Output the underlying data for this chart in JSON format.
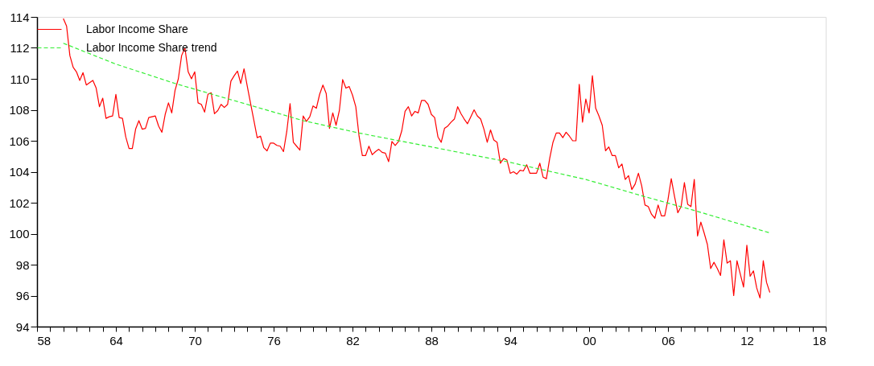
{
  "chart_data": {
    "type": "line",
    "legend": "top left",
    "grid": false,
    "xlim": [
      1958,
      2018
    ],
    "ylim": [
      94,
      114
    ],
    "yticks": [
      94,
      96,
      98,
      100,
      102,
      104,
      106,
      108,
      110,
      112,
      114
    ],
    "xticks": [
      {
        "value": 1958,
        "label": "58"
      },
      {
        "value": 1959,
        "label": null
      },
      {
        "value": 1960,
        "label": null
      },
      {
        "value": 1961,
        "label": null
      },
      {
        "value": 1962,
        "label": null
      },
      {
        "value": 1963,
        "label": null
      },
      {
        "value": 1964,
        "label": "64"
      },
      {
        "value": 1965,
        "label": null
      },
      {
        "value": 1966,
        "label": null
      },
      {
        "value": 1967,
        "label": null
      },
      {
        "value": 1968,
        "label": null
      },
      {
        "value": 1969,
        "label": null
      },
      {
        "value": 1970,
        "label": "70"
      },
      {
        "value": 1971,
        "label": null
      },
      {
        "value": 1972,
        "label": null
      },
      {
        "value": 1973,
        "label": null
      },
      {
        "value": 1974,
        "label": null
      },
      {
        "value": 1975,
        "label": null
      },
      {
        "value": 1976,
        "label": "76"
      },
      {
        "value": 1977,
        "label": null
      },
      {
        "value": 1978,
        "label": null
      },
      {
        "value": 1979,
        "label": null
      },
      {
        "value": 1980,
        "label": null
      },
      {
        "value": 1981,
        "label": null
      },
      {
        "value": 1982,
        "label": "82"
      },
      {
        "value": 1983,
        "label": null
      },
      {
        "value": 1984,
        "label": null
      },
      {
        "value": 1985,
        "label": null
      },
      {
        "value": 1986,
        "label": null
      },
      {
        "value": 1987,
        "label": null
      },
      {
        "value": 1988,
        "label": "88"
      },
      {
        "value": 1989,
        "label": null
      },
      {
        "value": 1990,
        "label": null
      },
      {
        "value": 1991,
        "label": null
      },
      {
        "value": 1992,
        "label": null
      },
      {
        "value": 1993,
        "label": null
      },
      {
        "value": 1994,
        "label": "94"
      },
      {
        "value": 1995,
        "label": null
      },
      {
        "value": 1996,
        "label": null
      },
      {
        "value": 1997,
        "label": null
      },
      {
        "value": 1998,
        "label": null
      },
      {
        "value": 1999,
        "label": null
      },
      {
        "value": 2000,
        "label": "00"
      },
      {
        "value": 2001,
        "label": null
      },
      {
        "value": 2002,
        "label": null
      },
      {
        "value": 2003,
        "label": null
      },
      {
        "value": 2004,
        "label": null
      },
      {
        "value": 2005,
        "label": null
      },
      {
        "value": 2006,
        "label": "06"
      },
      {
        "value": 2007,
        "label": null
      },
      {
        "value": 2008,
        "label": null
      },
      {
        "value": 2009,
        "label": null
      },
      {
        "value": 2010,
        "label": null
      },
      {
        "value": 2011,
        "label": null
      },
      {
        "value": 2012,
        "label": "12"
      },
      {
        "value": 2013,
        "label": null
      },
      {
        "value": 2014,
        "label": null
      },
      {
        "value": 2015,
        "label": null
      },
      {
        "value": 2016,
        "label": null
      },
      {
        "value": 2017,
        "label": null
      },
      {
        "value": 2018,
        "label": "18"
      }
    ],
    "series": [
      {
        "name": "Labor Income Share",
        "color": "#ff0000",
        "line_style": "solid",
        "x": [
          1960.0,
          1960.25,
          1960.5,
          1960.75,
          1961.0,
          1961.25,
          1961.5,
          1961.75,
          1962.0,
          1962.25,
          1962.5,
          1962.75,
          1963.0,
          1963.25,
          1963.5,
          1963.75,
          1964.0,
          1964.25,
          1964.5,
          1964.75,
          1965.0,
          1965.25,
          1965.5,
          1965.75,
          1966.0,
          1966.25,
          1966.5,
          1966.75,
          1967.0,
          1967.25,
          1967.5,
          1967.75,
          1968.0,
          1968.25,
          1968.5,
          1968.75,
          1969.0,
          1969.25,
          1969.5,
          1969.75,
          1970.0,
          1970.25,
          1970.5,
          1970.75,
          1971.0,
          1971.25,
          1971.5,
          1971.75,
          1972.0,
          1972.25,
          1972.5,
          1972.75,
          1973.0,
          1973.25,
          1973.5,
          1973.75,
          1974.0,
          1974.25,
          1974.5,
          1974.75,
          1975.0,
          1975.25,
          1975.5,
          1975.75,
          1976.0,
          1976.25,
          1976.5,
          1976.75,
          1977.0,
          1977.25,
          1977.5,
          1977.75,
          1978.0,
          1978.25,
          1978.5,
          1978.75,
          1979.0,
          1979.25,
          1979.5,
          1979.75,
          1980.0,
          1980.25,
          1980.5,
          1980.75,
          1981.0,
          1981.25,
          1981.5,
          1981.75,
          1982.0,
          1982.25,
          1982.5,
          1982.75,
          1983.0,
          1983.25,
          1983.5,
          1983.75,
          1984.0,
          1984.25,
          1984.5,
          1984.75,
          1985.0,
          1985.25,
          1985.5,
          1985.75,
          1986.0,
          1986.25,
          1986.5,
          1986.75,
          1987.0,
          1987.25,
          1987.5,
          1987.75,
          1988.0,
          1988.25,
          1988.5,
          1988.75,
          1989.0,
          1989.25,
          1989.5,
          1989.75,
          1990.0,
          1990.25,
          1990.5,
          1990.75,
          1991.0,
          1991.25,
          1991.5,
          1991.75,
          1992.0,
          1992.25,
          1992.5,
          1992.75,
          1993.0,
          1993.25,
          1993.5,
          1993.75,
          1994.0,
          1994.25,
          1994.5,
          1994.75,
          1995.0,
          1995.25,
          1995.5,
          1995.75,
          1996.0,
          1996.25,
          1996.5,
          1996.75,
          1997.0,
          1997.25,
          1997.5,
          1997.75,
          1998.0,
          1998.25,
          1998.5,
          1998.75,
          1999.0,
          1999.25,
          1999.5,
          1999.75,
          2000.0,
          2000.25,
          2000.5,
          2000.75,
          2001.0,
          2001.25,
          2001.5,
          2001.75,
          2002.0,
          2002.25,
          2002.5,
          2002.75,
          2003.0,
          2003.25,
          2003.5,
          2003.75,
          2004.0,
          2004.25,
          2004.5,
          2004.75,
          2005.0,
          2005.25,
          2005.5,
          2005.75,
          2006.0,
          2006.25,
          2006.5,
          2006.75,
          2007.0,
          2007.25,
          2007.5,
          2007.75,
          2008.0,
          2008.25,
          2008.5,
          2008.75,
          2009.0,
          2009.25,
          2009.5,
          2009.75,
          2010.0,
          2010.25,
          2010.5,
          2010.75,
          2011.0,
          2011.25,
          2011.5,
          2011.75,
          2012.0,
          2012.25,
          2012.5,
          2012.75,
          2013.0,
          2013.25,
          2013.5,
          2013.75
        ],
        "values": [
          113.9,
          113.4,
          111.5,
          110.75,
          110.45,
          109.9,
          110.4,
          109.6,
          109.75,
          109.9,
          109.4,
          108.2,
          108.75,
          107.45,
          107.55,
          107.6,
          109.0,
          107.5,
          107.45,
          106.25,
          105.5,
          105.5,
          106.75,
          107.3,
          106.75,
          106.8,
          107.5,
          107.55,
          107.6,
          106.95,
          106.55,
          107.7,
          108.45,
          107.8,
          109.25,
          110.0,
          111.5,
          112.0,
          110.45,
          110.0,
          110.45,
          108.45,
          108.35,
          107.85,
          109.0,
          109.1,
          107.75,
          107.95,
          108.35,
          108.15,
          108.35,
          109.85,
          110.2,
          110.5,
          109.7,
          110.65,
          109.5,
          108.4,
          107.3,
          106.2,
          106.3,
          105.55,
          105.35,
          105.85,
          105.85,
          105.7,
          105.65,
          105.3,
          106.6,
          108.4,
          105.9,
          105.65,
          105.4,
          107.6,
          107.25,
          107.55,
          108.25,
          108.1,
          109.0,
          109.6,
          109.05,
          106.8,
          107.8,
          107.0,
          107.95,
          109.95,
          109.4,
          109.5,
          108.95,
          108.2,
          106.3,
          105.05,
          105.05,
          105.65,
          105.1,
          105.3,
          105.45,
          105.25,
          105.2,
          104.65,
          105.95,
          105.7,
          105.95,
          106.65,
          107.9,
          108.2,
          107.6,
          107.9,
          107.8,
          108.6,
          108.6,
          108.35,
          107.7,
          107.5,
          106.25,
          105.9,
          106.8,
          106.95,
          107.2,
          107.4,
          108.2,
          107.75,
          107.4,
          107.1,
          107.55,
          108.0,
          107.6,
          107.4,
          106.75,
          105.9,
          106.7,
          106.05,
          105.9,
          104.55,
          104.85,
          104.75,
          103.9,
          104.0,
          103.85,
          104.1,
          104.05,
          104.45,
          103.9,
          103.9,
          103.9,
          104.55,
          103.65,
          103.55,
          104.85,
          105.9,
          106.5,
          106.5,
          106.2,
          106.55,
          106.3,
          106.0,
          106.0,
          109.65,
          107.2,
          108.7,
          107.8,
          110.2,
          108.1,
          107.6,
          107.0,
          105.35,
          105.6,
          105.05,
          105.05,
          104.25,
          104.5,
          103.5,
          103.75,
          102.85,
          103.2,
          103.9,
          103.1,
          101.85,
          101.75,
          101.25,
          101.0,
          101.85,
          101.15,
          101.15,
          102.2,
          103.55,
          102.4,
          101.35,
          101.75,
          103.3,
          101.9,
          101.75,
          103.5,
          99.85,
          100.75,
          100.05,
          99.3,
          97.75,
          98.15,
          97.75,
          97.3,
          99.6,
          98.1,
          98.25,
          96.0,
          98.25,
          97.4,
          96.55,
          99.25,
          97.25,
          97.6,
          96.5,
          95.85,
          98.25,
          96.85,
          96.2
        ]
      },
      {
        "name": "Labor Income Share trend",
        "color": "#33ee33",
        "line_style": "dashed",
        "x": [
          1960.0,
          1964.0,
          1968.5,
          1978.25,
          1982.5,
          1988.0,
          1993.75,
          1999.75,
          2004.0,
          2008.0,
          2013.75
        ],
        "values": [
          112.3,
          110.95,
          109.7,
          107.3,
          106.5,
          105.6,
          104.65,
          103.5,
          102.45,
          101.5,
          100.05
        ]
      }
    ]
  }
}
